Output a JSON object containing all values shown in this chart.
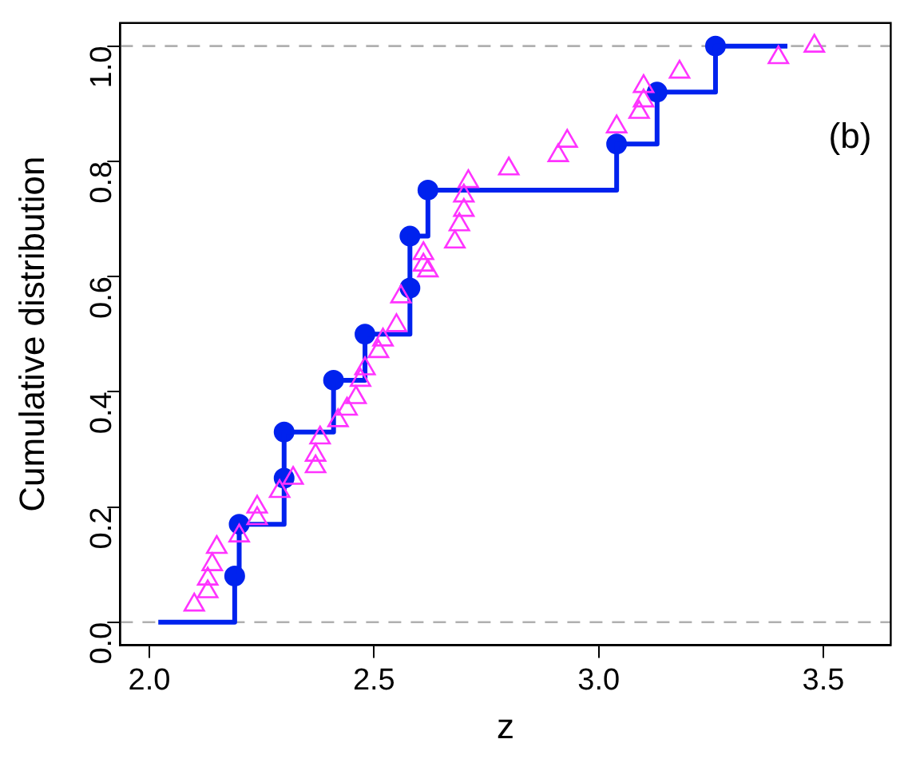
{
  "chart_data": {
    "type": "scatter",
    "xlabel": "z",
    "ylabel": "Cumulative distribution",
    "annotations": [
      "(b)"
    ],
    "xlim": [
      1.935,
      3.65
    ],
    "ylim": [
      -0.04,
      1.04
    ],
    "xticks": [
      {
        "value": 2,
        "label": "2.0"
      },
      {
        "value": 2.5,
        "label": "2.5"
      },
      {
        "value": 3,
        "label": "3.0"
      },
      {
        "value": 3.5,
        "label": "3.5"
      }
    ],
    "yticks": [
      {
        "value": 0,
        "label": "0.0"
      },
      {
        "value": 0.2,
        "label": "0.2"
      },
      {
        "value": 0.4,
        "label": "0.4"
      },
      {
        "value": 0.6,
        "label": "0.6"
      },
      {
        "value": 0.8,
        "label": "0.8"
      },
      {
        "value": 1,
        "label": "1.0"
      }
    ],
    "grid": false,
    "legend": false,
    "ref_lines": [
      {
        "axis": "y",
        "value": 0,
        "color": "#b0b0b0",
        "line_style": "dashed"
      },
      {
        "axis": "y",
        "value": 1,
        "color": "#b0b0b0",
        "line_style": "dashed"
      }
    ],
    "series": [
      {
        "type": "scatter",
        "marker": "triangle",
        "color": "#ff33ff",
        "x": [
          2.1,
          2.13,
          2.13,
          2.14,
          2.15,
          2.2,
          2.24,
          2.24,
          2.29,
          2.32,
          2.37,
          2.37,
          2.38,
          2.42,
          2.44,
          2.46,
          2.47,
          2.48,
          2.51,
          2.52,
          2.55,
          2.56,
          2.61,
          2.61,
          2.62,
          2.68,
          2.69,
          2.7,
          2.7,
          2.71,
          2.8,
          2.91,
          2.93,
          3.04,
          3.09,
          3.1,
          3.1,
          3.18,
          3.4,
          3.48
        ],
        "values": [
          0.03,
          0.053,
          0.075,
          0.1,
          0.13,
          0.15,
          0.18,
          0.2,
          0.227,
          0.25,
          0.27,
          0.29,
          0.32,
          0.35,
          0.37,
          0.39,
          0.42,
          0.44,
          0.47,
          0.49,
          0.515,
          0.565,
          0.62,
          0.64,
          0.61,
          0.66,
          0.69,
          0.715,
          0.74,
          0.765,
          0.787,
          0.81,
          0.835,
          0.86,
          0.885,
          0.905,
          0.93,
          0.955,
          0.98,
          1.0
        ]
      },
      {
        "type": "step",
        "marker": "none",
        "line_style": "solid",
        "color": "#0022ee",
        "x": [
          2.02,
          2.19,
          2.2,
          2.3,
          2.3,
          2.41,
          2.48,
          2.58,
          2.58,
          2.62,
          3.04,
          3.13,
          3.26,
          3.42
        ],
        "values": [
          0,
          0.08,
          0.17,
          0.25,
          0.33,
          0.42,
          0.5,
          0.58,
          0.67,
          0.75,
          0.83,
          0.92,
          1.0,
          1.0
        ]
      },
      {
        "type": "scatter",
        "marker": "circle",
        "color": "#0022ee",
        "x": [
          2.19,
          2.2,
          2.3,
          2.3,
          2.41,
          2.48,
          2.58,
          2.58,
          2.62,
          3.04,
          3.13,
          3.26
        ],
        "values": [
          0.08,
          0.17,
          0.25,
          0.33,
          0.42,
          0.5,
          0.58,
          0.67,
          0.75,
          0.83,
          0.92,
          1.0
        ]
      }
    ]
  }
}
